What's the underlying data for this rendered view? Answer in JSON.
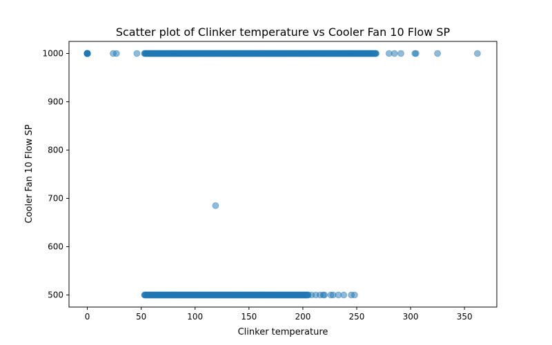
{
  "chart_data": {
    "type": "scatter",
    "title": "Scatter plot of Clinker temperature vs Cooler Fan 10 Flow SP",
    "xlabel": "Clinker temperature",
    "ylabel": "Cooler Fan 10 Flow SP",
    "xlim": [
      -17,
      380
    ],
    "ylim": [
      475,
      1025
    ],
    "xticks": [
      0,
      50,
      100,
      150,
      200,
      250,
      300,
      350
    ],
    "yticks": [
      500,
      600,
      700,
      800,
      900,
      1000
    ],
    "grid": false,
    "marker_color": "#1f77b4",
    "marker_alpha": 0.5,
    "series": [
      {
        "segments": [
          {
            "x_start": 0,
            "x_end": 0,
            "y": 1000,
            "step": 1,
            "count": 20
          },
          {
            "x_start": 53,
            "x_end": 268,
            "y": 1000,
            "step": 0.5
          },
          {
            "x_start": 53,
            "x_end": 205,
            "y": 500,
            "step": 0.5
          }
        ],
        "points": [
          {
            "x": 24,
            "y": 1000
          },
          {
            "x": 27,
            "y": 1000
          },
          {
            "x": 46,
            "y": 1000
          },
          {
            "x": 280,
            "y": 1000
          },
          {
            "x": 285,
            "y": 1000
          },
          {
            "x": 291,
            "y": 1000
          },
          {
            "x": 304,
            "y": 1000
          },
          {
            "x": 305,
            "y": 1000
          },
          {
            "x": 325,
            "y": 1000
          },
          {
            "x": 362,
            "y": 1000
          },
          {
            "x": 119,
            "y": 685
          },
          {
            "x": 208,
            "y": 500
          },
          {
            "x": 212,
            "y": 500
          },
          {
            "x": 216,
            "y": 500
          },
          {
            "x": 219,
            "y": 500
          },
          {
            "x": 220,
            "y": 500
          },
          {
            "x": 226,
            "y": 500
          },
          {
            "x": 228,
            "y": 500
          },
          {
            "x": 233,
            "y": 500
          },
          {
            "x": 238,
            "y": 500
          },
          {
            "x": 245,
            "y": 500
          },
          {
            "x": 248,
            "y": 500
          }
        ]
      }
    ]
  }
}
